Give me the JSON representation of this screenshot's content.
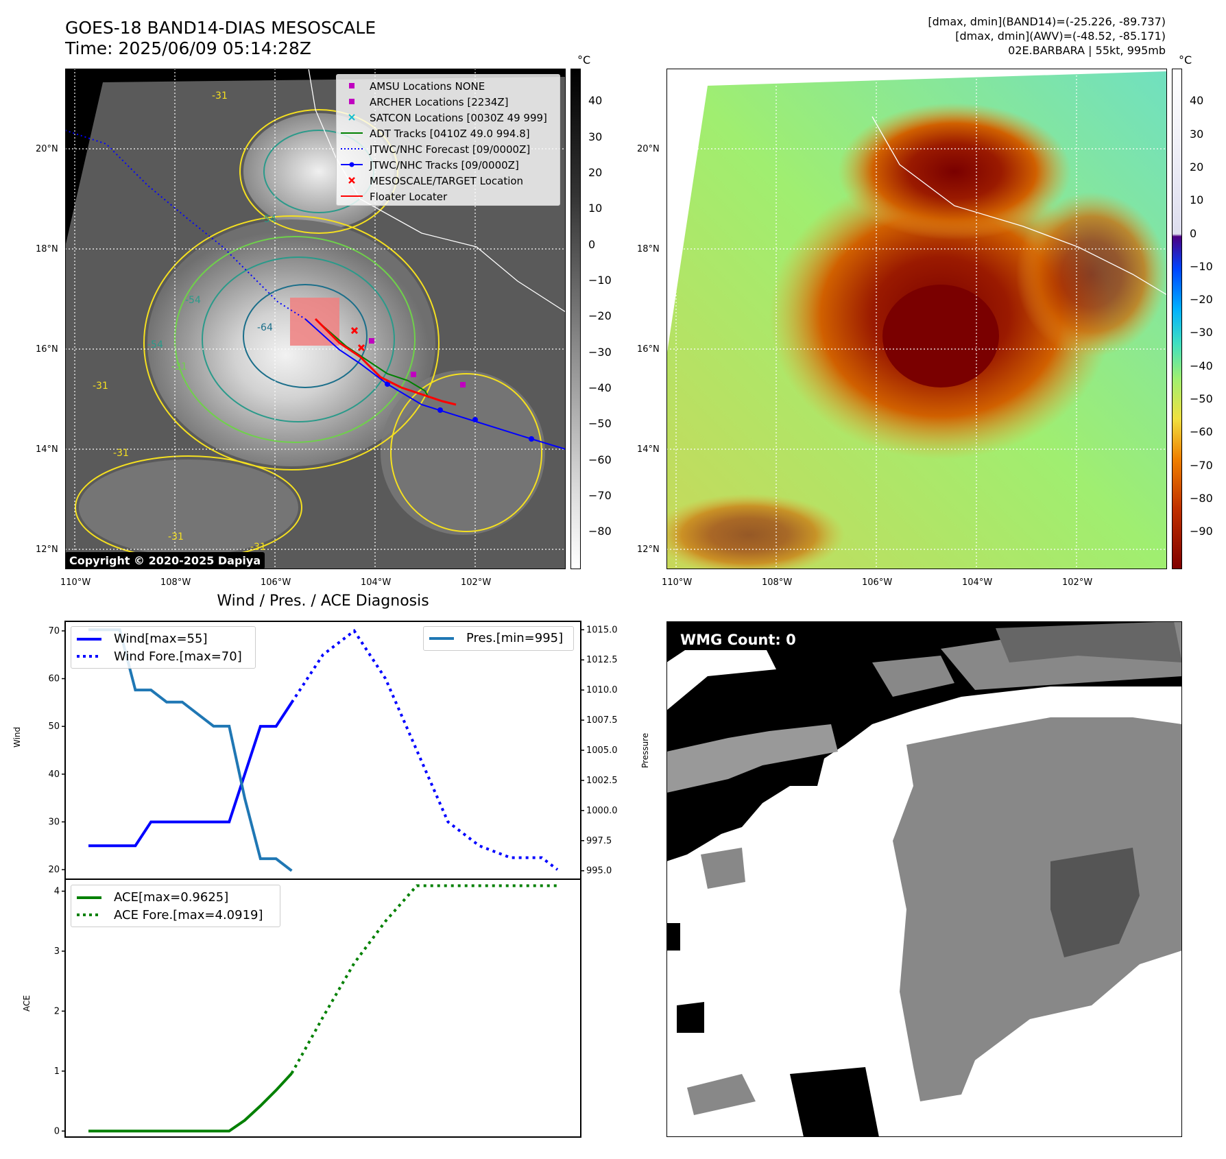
{
  "header": {
    "title": "GOES-18 BAND14-DIAS MESOSCALE",
    "time": "Time: 2025/06/09 05:14:28Z",
    "info_band14": "[dmax, dmin](BAND14)=(-25.226, -89.737)",
    "info_awv": "[dmax, dmin](AWV)=(-48.52, -85.171)",
    "info_storm": "02E.BARBARA | 55kt, 995mb"
  },
  "map_left": {
    "lat_labels": [
      "20°N",
      "18°N",
      "16°N",
      "14°N",
      "12°N"
    ],
    "lon_labels": [
      "110°W",
      "108°W",
      "106°W",
      "104°W",
      "102°W"
    ],
    "contour_labels": [
      "-31",
      "-54",
      "-64",
      "-31",
      "-31",
      "-54",
      "-31",
      "-54",
      "-31",
      "-31"
    ],
    "copyright": "Copyright © 2020-2025 Dapiya",
    "legend": [
      {
        "label": "AMSU Locations NONE",
        "marker": "square",
        "color": "#c000c0"
      },
      {
        "label": "ARCHER Locations [2234Z]",
        "marker": "square",
        "color": "#c000c0"
      },
      {
        "label": "SATCON Locations [0030Z 49 999]",
        "marker": "x",
        "color": "#17becf"
      },
      {
        "label": "ADT Tracks [0410Z 49.0 994.8]",
        "marker": "line",
        "color": "#008000"
      },
      {
        "label": "JTWC/NHC Forecast [09/0000Z]",
        "marker": "dotted",
        "color": "#0000ff"
      },
      {
        "label": "JTWC/NHC Tracks [09/0000Z]",
        "marker": "line-dot",
        "color": "#0000ff"
      },
      {
        "label": "MESOSCALE/TARGET Location",
        "marker": "x",
        "color": "#ff0000"
      },
      {
        "label": "Floater Locater",
        "marker": "line",
        "color": "#ff0000"
      }
    ],
    "colorbar_unit": "°C",
    "colorbar_ticks": [
      "40",
      "30",
      "20",
      "10",
      "0",
      "−10",
      "−20",
      "−30",
      "−40",
      "−50",
      "−60",
      "−70",
      "−80"
    ]
  },
  "map_right": {
    "lat_labels": [
      "20°N",
      "18°N",
      "16°N",
      "14°N",
      "12°N"
    ],
    "lon_labels": [
      "110°W",
      "108°W",
      "106°W",
      "104°W",
      "102°W"
    ],
    "colorbar_unit": "°C",
    "colorbar_ticks": [
      "40",
      "30",
      "20",
      "10",
      "0",
      "−10",
      "−20",
      "−30",
      "−40",
      "−50",
      "−60",
      "−70",
      "−80",
      "−90"
    ]
  },
  "diagnosis": {
    "title": "Wind / Pres. / ACE Diagnosis",
    "wind_ylabel": "Wind",
    "pres_ylabel": "Pressure",
    "ace_ylabel": "ACE",
    "legend_wind": "Wind[max=55]",
    "legend_wind_fore": "Wind Fore.[max=70]",
    "legend_pres": "Pres.[min=995]",
    "legend_ace": "ACE[max=0.9625]",
    "legend_ace_fore": "ACE Fore.[max=4.0919]"
  },
  "wmg": {
    "label": "WMG Count: 0"
  },
  "chart_data": [
    {
      "type": "line",
      "title": "Wind / Pres. / ACE Diagnosis",
      "ylabel": "Wind",
      "ylim": [
        18,
        72
      ],
      "x": [
        0,
        1,
        2,
        3,
        4,
        5,
        6,
        7,
        8,
        9,
        10,
        11,
        12,
        13,
        14,
        15,
        16,
        17,
        18,
        19,
        20,
        21,
        22,
        23,
        24,
        25,
        26,
        27,
        28,
        29,
        30
      ],
      "yticks": [
        20,
        30,
        40,
        50,
        60,
        70
      ],
      "series": [
        {
          "name": "Wind[max=55]",
          "color": "#0000ff",
          "style": "solid",
          "x": [
            0,
            1,
            2,
            3,
            4,
            5,
            6,
            7,
            8,
            9,
            10,
            11,
            12,
            13
          ],
          "values": [
            25,
            25,
            25,
            25,
            30,
            30,
            30,
            30,
            30,
            30,
            40,
            50,
            50,
            55
          ]
        },
        {
          "name": "Wind Fore.[max=70]",
          "color": "#0000ff",
          "style": "dotted",
          "x": [
            13,
            15,
            17,
            19,
            21,
            23,
            25,
            27,
            29,
            30
          ],
          "values": [
            55,
            65,
            70,
            60,
            45,
            30,
            25,
            22.5,
            22.5,
            20
          ]
        }
      ]
    },
    {
      "type": "line",
      "ylabel": "Pressure",
      "ylim": [
        994.3,
        1015.7
      ],
      "yticks": [
        995.0,
        997.5,
        1000.0,
        1002.5,
        1005.0,
        1007.5,
        1010.0,
        1012.5,
        1015.0
      ],
      "series": [
        {
          "name": "Pres.[min=995]",
          "color": "#1f77b4",
          "style": "solid",
          "x": [
            0,
            1,
            2,
            3,
            4,
            5,
            6,
            7,
            8,
            9,
            10,
            11,
            12,
            13
          ],
          "values": [
            1015,
            1015,
            1015,
            1010,
            1010,
            1009,
            1009,
            1008,
            1007,
            1007,
            1001,
            996,
            996,
            995
          ]
        }
      ]
    },
    {
      "type": "line",
      "ylabel": "ACE",
      "ylim": [
        -0.1,
        4.2
      ],
      "yticks": [
        0,
        1,
        2,
        3,
        4
      ],
      "series": [
        {
          "name": "ACE[max=0.9625]",
          "color": "#008000",
          "style": "solid",
          "x": [
            0,
            1,
            2,
            3,
            4,
            5,
            6,
            7,
            8,
            9,
            10,
            11,
            12,
            13
          ],
          "values": [
            0,
            0,
            0,
            0,
            0,
            0,
            0,
            0,
            0,
            0,
            0.18,
            0.42,
            0.68,
            0.9625
          ]
        },
        {
          "name": "ACE Fore.[max=4.0919]",
          "color": "#008000",
          "style": "dotted",
          "x": [
            13,
            15,
            17,
            19,
            21,
            23,
            25,
            27,
            29,
            30
          ],
          "values": [
            0.9625,
            1.9,
            2.8,
            3.5,
            4.0919,
            4.0919,
            4.0919,
            4.0919,
            4.0919,
            4.0919
          ]
        }
      ]
    }
  ]
}
